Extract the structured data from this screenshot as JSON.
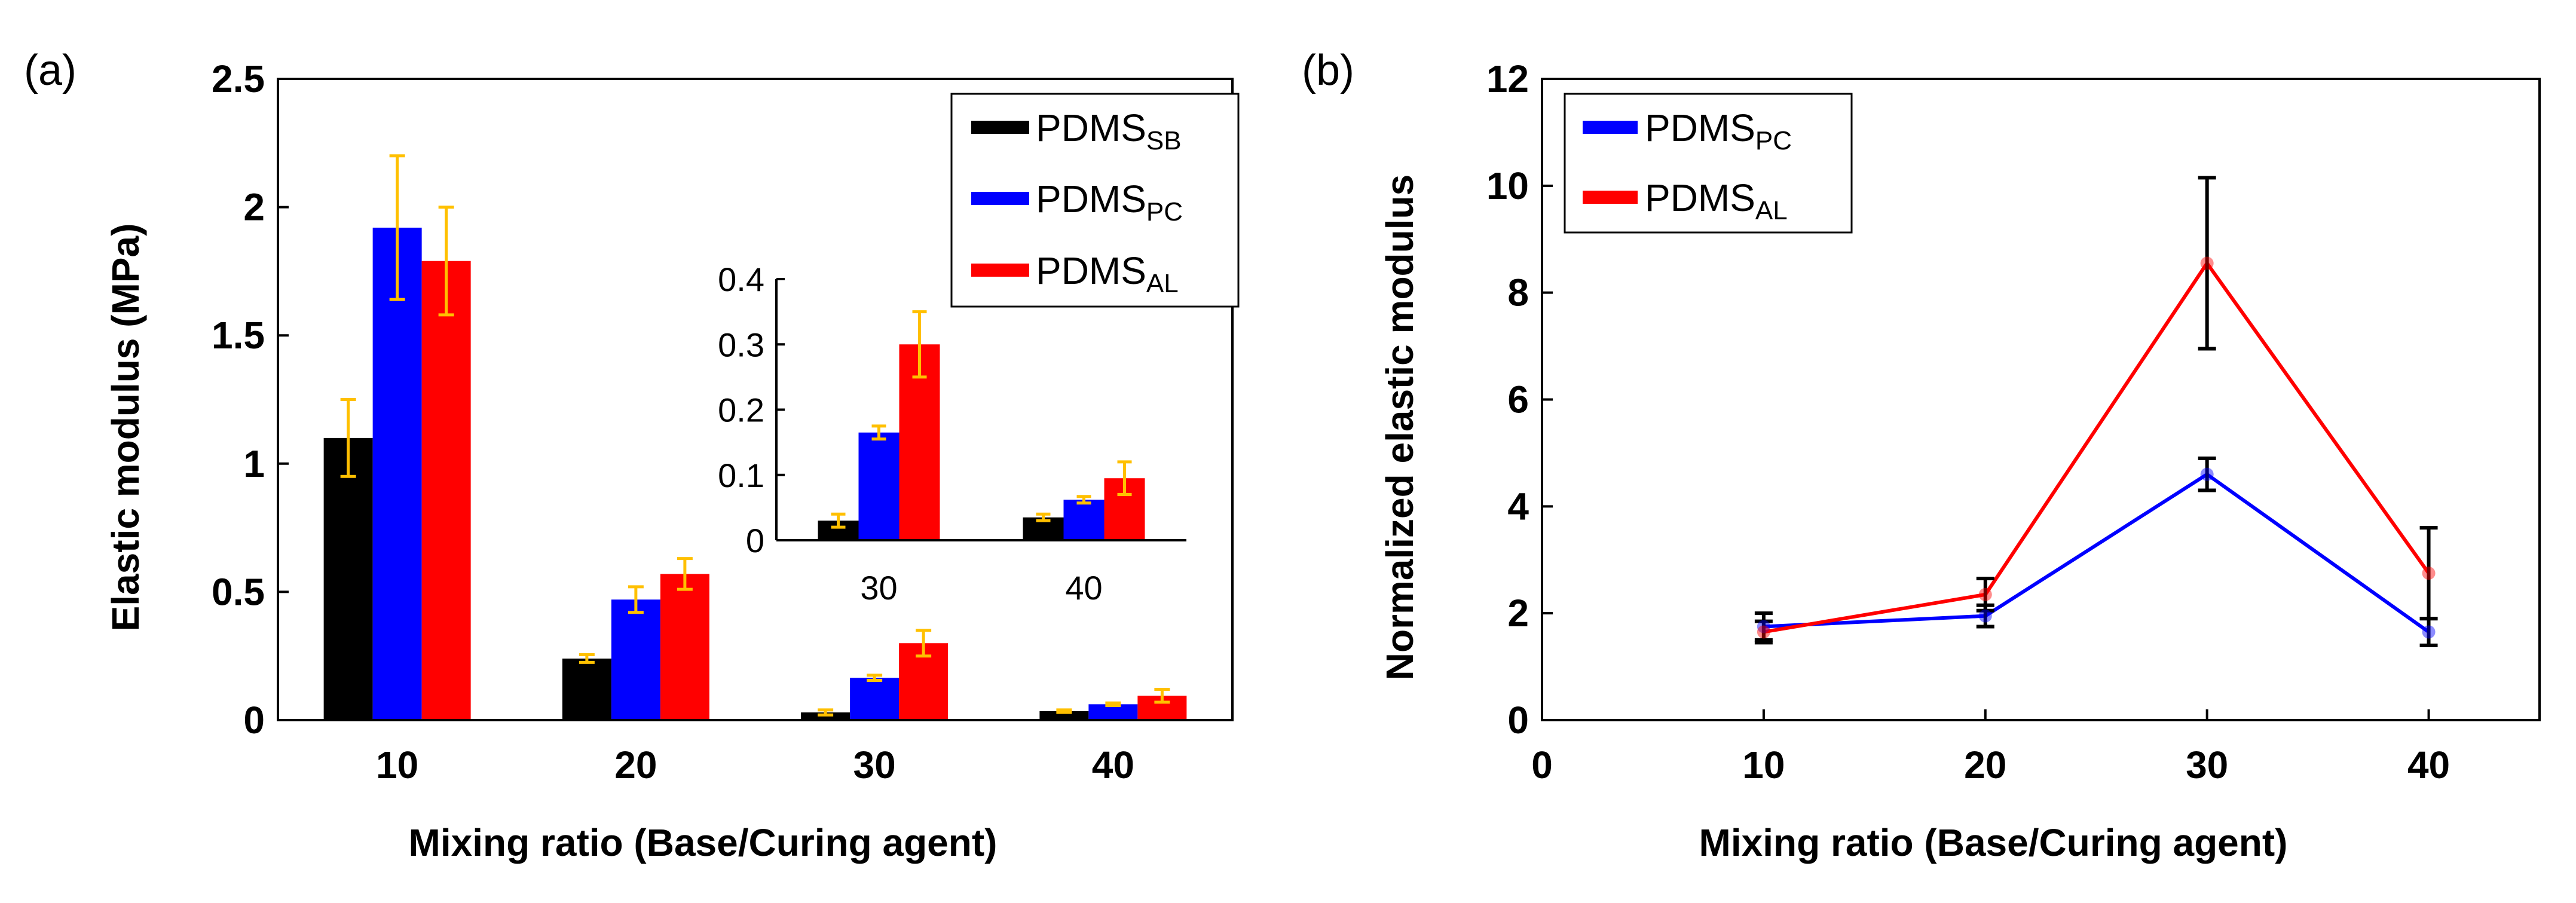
{
  "chart_data": [
    {
      "panel": "(a)",
      "type": "bar",
      "xlabel": "Mixing ratio (Base/Curing agent)",
      "ylabel": "Elastic modulus (MPa)",
      "ylim": [
        0,
        2.5
      ],
      "yticks": [
        "0",
        "0.5",
        "1",
        "1.5",
        "2",
        "2.5"
      ],
      "categories": [
        "10",
        "20",
        "30",
        "40"
      ],
      "series": [
        {
          "name": "PDMS",
          "sub": "SB",
          "color": "#000000",
          "values": [
            1.1,
            0.24,
            0.03,
            0.035
          ],
          "errors": [
            0.15,
            0.015,
            0.01,
            0.005
          ]
        },
        {
          "name": "PDMS",
          "sub": "PC",
          "color": "#0000ff",
          "values": [
            1.92,
            0.47,
            0.165,
            0.062
          ],
          "errors": [
            0.28,
            0.05,
            0.01,
            0.005
          ]
        },
        {
          "name": "PDMS",
          "sub": "AL",
          "color": "#ff0000",
          "values": [
            1.79,
            0.57,
            0.3,
            0.095
          ],
          "errors": [
            0.21,
            0.06,
            0.05,
            0.025
          ]
        }
      ],
      "inset": {
        "ylim": [
          0,
          0.4
        ],
        "yticks": [
          "0",
          "0.1",
          "0.2",
          "0.3",
          "0.4"
        ],
        "categories": [
          "30",
          "40"
        ]
      },
      "error_bar_color": "#ffc000",
      "legend": "top-right"
    },
    {
      "panel": "(b)",
      "type": "line",
      "xlabel": "Mixing ratio (Base/Curing agent)",
      "ylabel": "Normalized elastic modulus",
      "xlim": [
        0,
        45
      ],
      "ylim": [
        0,
        12
      ],
      "xticks": [
        "0",
        "10",
        "20",
        "30",
        "40"
      ],
      "yticks": [
        "0",
        "2",
        "4",
        "6",
        "8",
        "10",
        "12"
      ],
      "x": [
        10,
        20,
        30,
        40
      ],
      "series": [
        {
          "name": "PDMS",
          "sub": "PC",
          "color": "#0000ff",
          "values": [
            1.75,
            1.95,
            4.6,
            1.65
          ],
          "errors": [
            0.25,
            0.2,
            0.3,
            0.25
          ]
        },
        {
          "name": "PDMS",
          "sub": "AL",
          "color": "#ff0000",
          "values": [
            1.65,
            2.35,
            8.55,
            2.75
          ],
          "errors": [
            0.2,
            0.3,
            1.6,
            0.85
          ]
        }
      ],
      "error_bar_color": "#000000",
      "legend": "top-left"
    }
  ]
}
